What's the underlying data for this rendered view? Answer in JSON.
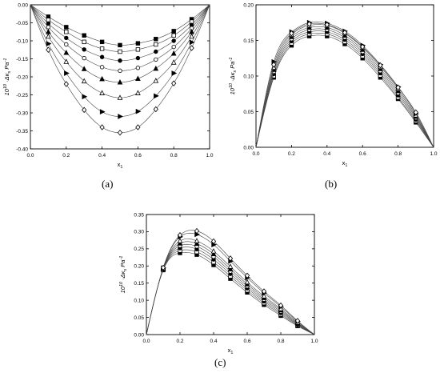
{
  "captions": {
    "a": "(a)",
    "b": "(b)",
    "c": "(c)"
  },
  "chart_data": [
    {
      "type": "scatter",
      "panel": "a",
      "title": "",
      "xlabel": "x1",
      "ylabel": "10^10 ·Δκs Pa^-1",
      "xlim": [
        0.0,
        1.0
      ],
      "ylim": [
        -0.4,
        0.0
      ],
      "xticks": [
        "0.0",
        "0.2",
        "0.4",
        "0.6",
        "0.8",
        "1.0"
      ],
      "yticks": [
        "0.00",
        "-0.05",
        "-0.10",
        "-0.15",
        "-0.20",
        "-0.25",
        "-0.30",
        "-0.35",
        "-0.40"
      ],
      "xtickvals": [
        0.0,
        0.2,
        0.4,
        0.6,
        0.8,
        1.0
      ],
      "ytickvals": [
        0.0,
        -0.05,
        -0.1,
        -0.15,
        -0.2,
        -0.25,
        -0.3,
        -0.35,
        -0.4
      ],
      "series": [
        {
          "marker": "square-filled",
          "x": [
            0.1,
            0.2,
            0.3,
            0.4,
            0.5,
            0.6,
            0.7,
            0.8,
            0.9
          ],
          "y": [
            -0.033,
            -0.062,
            -0.085,
            -0.103,
            -0.112,
            -0.107,
            -0.095,
            -0.073,
            -0.04
          ]
        },
        {
          "marker": "square-open",
          "x": [
            0.1,
            0.2,
            0.3,
            0.4,
            0.5,
            0.6,
            0.7,
            0.8,
            0.9
          ],
          "y": [
            -0.042,
            -0.075,
            -0.103,
            -0.122,
            -0.13,
            -0.124,
            -0.11,
            -0.085,
            -0.047
          ]
        },
        {
          "marker": "circle-filled",
          "x": [
            0.1,
            0.2,
            0.3,
            0.4,
            0.5,
            0.6,
            0.7,
            0.8,
            0.9
          ],
          "y": [
            -0.052,
            -0.092,
            -0.124,
            -0.145,
            -0.155,
            -0.148,
            -0.13,
            -0.1,
            -0.056
          ]
        },
        {
          "marker": "circle-open",
          "x": [
            0.1,
            0.2,
            0.3,
            0.4,
            0.5,
            0.6,
            0.7,
            0.8,
            0.9
          ],
          "y": [
            -0.062,
            -0.11,
            -0.148,
            -0.173,
            -0.183,
            -0.175,
            -0.152,
            -0.117,
            -0.065
          ]
        },
        {
          "marker": "triangle-filled",
          "x": [
            0.1,
            0.2,
            0.3,
            0.4,
            0.5,
            0.6,
            0.7,
            0.8,
            0.9
          ],
          "y": [
            -0.075,
            -0.133,
            -0.178,
            -0.206,
            -0.215,
            -0.205,
            -0.177,
            -0.135,
            -0.075
          ]
        },
        {
          "marker": "triangle-open",
          "x": [
            0.1,
            0.2,
            0.3,
            0.4,
            0.5,
            0.6,
            0.7,
            0.8,
            0.9
          ],
          "y": [
            -0.088,
            -0.158,
            -0.212,
            -0.245,
            -0.258,
            -0.245,
            -0.211,
            -0.16,
            -0.088
          ]
        },
        {
          "marker": "right-triangle-filled",
          "x": [
            0.1,
            0.2,
            0.3,
            0.4,
            0.5,
            0.6,
            0.7,
            0.8,
            0.9
          ],
          "y": [
            -0.108,
            -0.19,
            -0.255,
            -0.297,
            -0.31,
            -0.296,
            -0.253,
            -0.19,
            -0.104
          ]
        },
        {
          "marker": "diamond-open",
          "x": [
            0.1,
            0.2,
            0.3,
            0.4,
            0.5,
            0.6,
            0.7,
            0.8,
            0.9
          ],
          "y": [
            -0.125,
            -0.22,
            -0.292,
            -0.34,
            -0.355,
            -0.34,
            -0.29,
            -0.218,
            -0.12
          ]
        }
      ]
    },
    {
      "type": "scatter",
      "panel": "b",
      "title": "",
      "xlabel": "x1",
      "ylabel": "10^10 ·Δκs Pa^-1",
      "xlim": [
        0.0,
        1.0
      ],
      "ylim": [
        0.0,
        0.2
      ],
      "xticks": [
        "0.0",
        "0.2",
        "0.4",
        "0.6",
        "0.8",
        "1.0"
      ],
      "yticks": [
        "0.00",
        "0.05",
        "0.10",
        "0.15",
        "0.20"
      ],
      "xtickvals": [
        0.0,
        0.2,
        0.4,
        0.6,
        0.8,
        1.0
      ],
      "ytickvals": [
        0.0,
        0.05,
        0.1,
        0.15,
        0.2
      ],
      "series": [
        {
          "marker": "square-filled",
          "x": [
            0.1,
            0.2,
            0.3,
            0.4,
            0.5,
            0.6,
            0.7,
            0.8,
            0.9
          ],
          "y": [
            0.098,
            0.143,
            0.156,
            0.156,
            0.145,
            0.125,
            0.098,
            0.068,
            0.035
          ]
        },
        {
          "marker": "square-open",
          "x": [
            0.1,
            0.2,
            0.3,
            0.4,
            0.5,
            0.6,
            0.7,
            0.8,
            0.9
          ],
          "y": [
            0.1,
            0.146,
            0.159,
            0.159,
            0.148,
            0.128,
            0.101,
            0.07,
            0.037
          ]
        },
        {
          "marker": "circle-filled",
          "x": [
            0.1,
            0.2,
            0.3,
            0.4,
            0.5,
            0.6,
            0.7,
            0.8,
            0.9
          ],
          "y": [
            0.103,
            0.149,
            0.162,
            0.162,
            0.151,
            0.131,
            0.104,
            0.073,
            0.039
          ]
        },
        {
          "marker": "circle-open",
          "x": [
            0.1,
            0.2,
            0.3,
            0.4,
            0.5,
            0.6,
            0.7,
            0.8,
            0.9
          ],
          "y": [
            0.106,
            0.152,
            0.165,
            0.165,
            0.154,
            0.134,
            0.107,
            0.076,
            0.041
          ]
        },
        {
          "marker": "triangle-filled",
          "x": [
            0.1,
            0.2,
            0.3,
            0.4,
            0.5,
            0.6,
            0.7,
            0.8,
            0.9
          ],
          "y": [
            0.109,
            0.155,
            0.168,
            0.168,
            0.157,
            0.137,
            0.11,
            0.079,
            0.043
          ]
        },
        {
          "marker": "triangle-open",
          "x": [
            0.1,
            0.2,
            0.3,
            0.4,
            0.5,
            0.6,
            0.7,
            0.8,
            0.9
          ],
          "y": [
            0.112,
            0.158,
            0.171,
            0.171,
            0.16,
            0.14,
            0.113,
            0.082,
            0.045
          ]
        },
        {
          "marker": "right-triangle-filled",
          "x": [
            0.1,
            0.2,
            0.3,
            0.4,
            0.5,
            0.6,
            0.7,
            0.8,
            0.9
          ],
          "y": [
            0.12,
            0.162,
            0.175,
            0.174,
            0.163,
            0.143,
            0.116,
            0.085,
            0.047
          ]
        },
        {
          "marker": "diamond-open",
          "x": [
            0.1,
            0.2,
            0.3,
            0.4,
            0.5,
            0.6,
            0.7,
            0.8,
            0.9
          ],
          "y": [
            0.116,
            0.16,
            0.173,
            0.172,
            0.161,
            0.141,
            0.115,
            0.084,
            0.049
          ]
        }
      ]
    },
    {
      "type": "scatter",
      "panel": "c",
      "title": "",
      "xlabel": "x1",
      "ylabel": "10^10 ·Δκs Pa^-1",
      "xlim": [
        0.0,
        1.0
      ],
      "ylim": [
        0.0,
        0.35
      ],
      "xticks": [
        "0.0",
        "0.2",
        "0.4",
        "0.6",
        "0.8",
        "1.0"
      ],
      "yticks": [
        "0.00",
        "0.05",
        "0.10",
        "0.15",
        "0.20",
        "0.25",
        "0.30",
        "0.35"
      ],
      "xtickvals": [
        0.0,
        0.2,
        0.4,
        0.6,
        0.8,
        1.0
      ],
      "ytickvals": [
        0.0,
        0.05,
        0.1,
        0.15,
        0.2,
        0.25,
        0.3,
        0.35
      ],
      "series": [
        {
          "marker": "square-filled",
          "x": [
            0.1,
            0.2,
            0.3,
            0.4,
            0.5,
            0.6,
            0.7,
            0.8,
            0.9
          ],
          "y": [
            0.188,
            0.238,
            0.233,
            0.203,
            0.163,
            0.123,
            0.087,
            0.055,
            0.025
          ]
        },
        {
          "marker": "square-open",
          "x": [
            0.1,
            0.2,
            0.3,
            0.4,
            0.5,
            0.6,
            0.7,
            0.8,
            0.9
          ],
          "y": [
            0.189,
            0.245,
            0.241,
            0.211,
            0.17,
            0.129,
            0.092,
            0.059,
            0.027
          ]
        },
        {
          "marker": "circle-filled",
          "x": [
            0.1,
            0.2,
            0.3,
            0.4,
            0.5,
            0.6,
            0.7,
            0.8,
            0.9
          ],
          "y": [
            0.19,
            0.252,
            0.249,
            0.219,
            0.177,
            0.135,
            0.097,
            0.063,
            0.029
          ]
        },
        {
          "marker": "circle-open",
          "x": [
            0.1,
            0.2,
            0.3,
            0.4,
            0.5,
            0.6,
            0.7,
            0.8,
            0.9
          ],
          "y": [
            0.191,
            0.259,
            0.257,
            0.227,
            0.184,
            0.141,
            0.102,
            0.067,
            0.031
          ]
        },
        {
          "marker": "triangle-filled",
          "x": [
            0.1,
            0.2,
            0.3,
            0.4,
            0.5,
            0.6,
            0.7,
            0.8,
            0.9
          ],
          "y": [
            0.192,
            0.266,
            0.265,
            0.235,
            0.191,
            0.147,
            0.107,
            0.071,
            0.033
          ]
        },
        {
          "marker": "triangle-open",
          "x": [
            0.1,
            0.2,
            0.3,
            0.4,
            0.5,
            0.6,
            0.7,
            0.8,
            0.9
          ],
          "y": [
            0.193,
            0.273,
            0.273,
            0.243,
            0.198,
            0.153,
            0.112,
            0.075,
            0.035
          ]
        },
        {
          "marker": "right-triangle-filled",
          "x": [
            0.1,
            0.2,
            0.3,
            0.4,
            0.5,
            0.6,
            0.7,
            0.8,
            0.9
          ],
          "y": [
            0.194,
            0.285,
            0.292,
            0.262,
            0.214,
            0.166,
            0.121,
            0.081,
            0.038
          ]
        },
        {
          "marker": "diamond-open",
          "x": [
            0.1,
            0.2,
            0.3,
            0.4,
            0.5,
            0.6,
            0.7,
            0.8,
            0.9
          ],
          "y": [
            0.195,
            0.29,
            0.302,
            0.272,
            0.222,
            0.172,
            0.126,
            0.085,
            0.04
          ]
        }
      ]
    }
  ]
}
